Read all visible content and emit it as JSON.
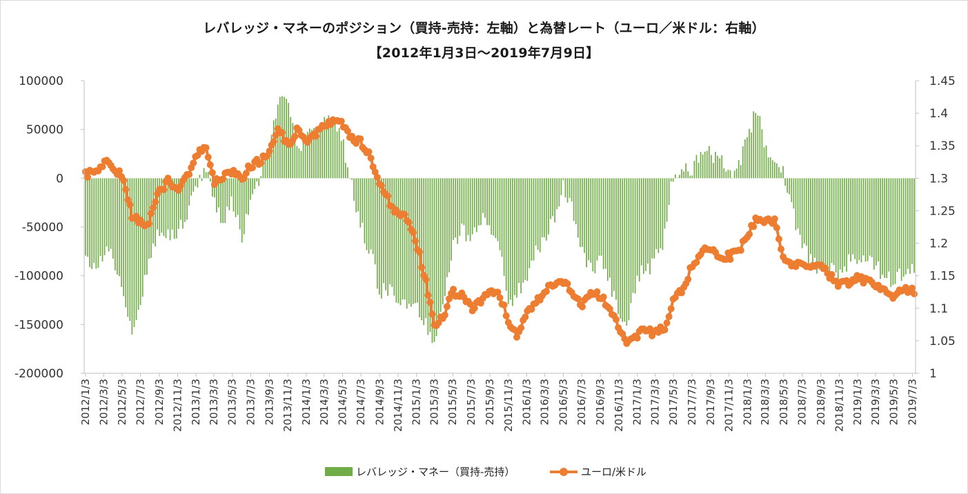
{
  "chart_data": {
    "type": "bar+line",
    "title": "レバレッジ・マネーのポジション（買持-売持：左軸）と為替レート（ユーロ／米ドル：右軸）",
    "subtitle": "【2012年1月3日～2019年7月9日】",
    "x_tick_labels": [
      "2012/1/3",
      "2012/3/3",
      "2012/5/3",
      "2012/7/3",
      "2012/9/3",
      "2012/11/3",
      "2013/1/3",
      "2013/3/3",
      "2013/5/3",
      "2013/7/3",
      "2013/9/3",
      "2013/11/3",
      "2014/1/3",
      "2014/3/3",
      "2014/5/3",
      "2014/7/3",
      "2014/9/3",
      "2014/11/3",
      "2015/1/3",
      "2015/3/3",
      "2015/5/3",
      "2015/7/3",
      "2015/9/3",
      "2015/11/3",
      "2016/1/3",
      "2016/3/3",
      "2016/5/3",
      "2016/7/3",
      "2016/9/3",
      "2016/11/3",
      "2017/1/3",
      "2017/3/3",
      "2017/5/3",
      "2017/7/3",
      "2017/9/3",
      "2017/11/3",
      "2018/1/3",
      "2018/3/3",
      "2018/5/3",
      "2018/7/3",
      "2018/9/3",
      "2018/11/3",
      "2019/1/3",
      "2019/3/3",
      "2019/5/3",
      "2019/7/3"
    ],
    "y_left": {
      "min": -200000,
      "max": 100000,
      "step": 50000,
      "tick_labels": [
        "100000",
        "50000",
        "0",
        "-50000",
        "-100000",
        "-150000",
        "-200000"
      ]
    },
    "y_right": {
      "min": 1.0,
      "max": 1.45,
      "step": 0.05,
      "tick_labels": [
        "1.45",
        "1.4",
        "1.35",
        "1.3",
        "1.25",
        "1.2",
        "1.15",
        "1.1",
        "1.05",
        "1"
      ]
    },
    "series": [
      {
        "name": "レバレッジ・マネー（買持-売持）",
        "kind": "bar",
        "color": "#70ad47",
        "anchors": [
          [
            "2012/1/3",
            -85000
          ],
          [
            "2012/2/3",
            -95000
          ],
          [
            "2012/3/3",
            -75000
          ],
          [
            "2012/4/3",
            -80000
          ],
          [
            "2012/5/3",
            -110000
          ],
          [
            "2012/6/3",
            -155000
          ],
          [
            "2012/7/3",
            -125000
          ],
          [
            "2012/8/3",
            -85000
          ],
          [
            "2012/9/3",
            -50000
          ],
          [
            "2012/10/3",
            -60000
          ],
          [
            "2012/11/3",
            -55000
          ],
          [
            "2012/12/3",
            -35000
          ],
          [
            "2013/1/3",
            -5000
          ],
          [
            "2013/2/3",
            10000
          ],
          [
            "2013/3/3",
            -20000
          ],
          [
            "2013/4/3",
            -45000
          ],
          [
            "2013/5/3",
            -25000
          ],
          [
            "2013/6/3",
            -60000
          ],
          [
            "2013/7/3",
            -30000
          ],
          [
            "2013/8/3",
            5000
          ],
          [
            "2013/9/3",
            30000
          ],
          [
            "2013/10/3",
            75000
          ],
          [
            "2013/11/3",
            85000
          ],
          [
            "2013/12/3",
            25000
          ],
          [
            "2014/1/3",
            40000
          ],
          [
            "2014/2/3",
            50000
          ],
          [
            "2014/3/3",
            65000
          ],
          [
            "2014/4/3",
            55000
          ],
          [
            "2014/5/3",
            40000
          ],
          [
            "2014/6/3",
            -10000
          ],
          [
            "2014/7/3",
            -50000
          ],
          [
            "2014/8/3",
            -75000
          ],
          [
            "2014/9/3",
            -115000
          ],
          [
            "2014/10/3",
            -115000
          ],
          [
            "2014/11/3",
            -130000
          ],
          [
            "2014/12/3",
            -125000
          ],
          [
            "2015/1/3",
            -130000
          ],
          [
            "2015/2/3",
            -150000
          ],
          [
            "2015/3/3",
            -165000
          ],
          [
            "2015/4/3",
            -120000
          ],
          [
            "2015/5/3",
            -70000
          ],
          [
            "2015/6/3",
            -50000
          ],
          [
            "2015/7/3",
            -70000
          ],
          [
            "2015/8/3",
            -40000
          ],
          [
            "2015/9/3",
            -50000
          ],
          [
            "2015/10/3",
            -60000
          ],
          [
            "2015/11/3",
            -135000
          ],
          [
            "2015/12/3",
            -115000
          ],
          [
            "2016/1/3",
            -110000
          ],
          [
            "2016/2/3",
            -75000
          ],
          [
            "2016/3/3",
            -60000
          ],
          [
            "2016/4/3",
            -40000
          ],
          [
            "2016/5/3",
            -10000
          ],
          [
            "2016/6/3",
            -30000
          ],
          [
            "2016/7/3",
            -70000
          ],
          [
            "2016/8/3",
            -95000
          ],
          [
            "2016/9/3",
            -85000
          ],
          [
            "2016/10/3",
            -110000
          ],
          [
            "2016/11/3",
            -140000
          ],
          [
            "2016/12/3",
            -150000
          ],
          [
            "2017/1/3",
            -100000
          ],
          [
            "2017/2/3",
            -95000
          ],
          [
            "2017/3/3",
            -85000
          ],
          [
            "2017/4/3",
            -60000
          ],
          [
            "2017/5/3",
            5000
          ],
          [
            "2017/6/3",
            5000
          ],
          [
            "2017/7/3",
            10000
          ],
          [
            "2017/8/3",
            25000
          ],
          [
            "2017/9/3",
            25000
          ],
          [
            "2017/10/3",
            20000
          ],
          [
            "2017/11/3",
            5000
          ],
          [
            "2017/12/3",
            10000
          ],
          [
            "2018/1/3",
            45000
          ],
          [
            "2018/2/3",
            70000
          ],
          [
            "2018/3/3",
            30000
          ],
          [
            "2018/4/3",
            25000
          ],
          [
            "2018/5/3",
            5000
          ],
          [
            "2018/6/3",
            -35000
          ],
          [
            "2018/7/3",
            -70000
          ],
          [
            "2018/8/3",
            -85000
          ],
          [
            "2018/9/3",
            -95000
          ],
          [
            "2018/10/3",
            -95000
          ],
          [
            "2018/11/3",
            -95000
          ],
          [
            "2018/12/3",
            -85000
          ],
          [
            "2019/1/3",
            -80000
          ],
          [
            "2019/2/3",
            -85000
          ],
          [
            "2019/3/3",
            -90000
          ],
          [
            "2019/4/3",
            -100000
          ],
          [
            "2019/5/3",
            -105000
          ],
          [
            "2019/6/3",
            -95000
          ],
          [
            "2019/7/9",
            -90000
          ]
        ]
      },
      {
        "name": "ユーロ/米ドル",
        "kind": "line",
        "color": "#ed7d31",
        "anchors": [
          [
            "2012/1/3",
            1.305
          ],
          [
            "2012/2/3",
            1.31
          ],
          [
            "2012/3/3",
            1.325
          ],
          [
            "2012/4/3",
            1.32
          ],
          [
            "2012/5/3",
            1.3
          ],
          [
            "2012/6/3",
            1.245
          ],
          [
            "2012/7/3",
            1.23
          ],
          [
            "2012/8/3",
            1.235
          ],
          [
            "2012/9/3",
            1.28
          ],
          [
            "2012/10/3",
            1.295
          ],
          [
            "2012/11/3",
            1.285
          ],
          [
            "2012/12/3",
            1.305
          ],
          [
            "2013/1/3",
            1.33
          ],
          [
            "2013/2/3",
            1.355
          ],
          [
            "2013/3/3",
            1.295
          ],
          [
            "2013/4/3",
            1.3
          ],
          [
            "2013/5/3",
            1.31
          ],
          [
            "2013/6/3",
            1.3
          ],
          [
            "2013/7/3",
            1.32
          ],
          [
            "2013/8/3",
            1.325
          ],
          [
            "2013/9/3",
            1.34
          ],
          [
            "2013/10/3",
            1.375
          ],
          [
            "2013/11/3",
            1.35
          ],
          [
            "2013/12/3",
            1.375
          ],
          [
            "2014/1/3",
            1.36
          ],
          [
            "2014/2/3",
            1.37
          ],
          [
            "2014/3/3",
            1.385
          ],
          [
            "2014/4/3",
            1.385
          ],
          [
            "2014/5/3",
            1.385
          ],
          [
            "2014/6/3",
            1.36
          ],
          [
            "2014/7/3",
            1.355
          ],
          [
            "2014/8/3",
            1.335
          ],
          [
            "2014/9/3",
            1.29
          ],
          [
            "2014/10/3",
            1.265
          ],
          [
            "2014/11/3",
            1.245
          ],
          [
            "2014/12/3",
            1.24
          ],
          [
            "2015/1/3",
            1.2
          ],
          [
            "2015/2/3",
            1.14
          ],
          [
            "2015/3/3",
            1.075
          ],
          [
            "2015/4/3",
            1.09
          ],
          [
            "2015/5/3",
            1.125
          ],
          [
            "2015/6/3",
            1.12
          ],
          [
            "2015/7/3",
            1.1
          ],
          [
            "2015/8/3",
            1.11
          ],
          [
            "2015/9/3",
            1.125
          ],
          [
            "2015/10/3",
            1.125
          ],
          [
            "2015/11/3",
            1.08
          ],
          [
            "2015/12/3",
            1.06
          ],
          [
            "2016/1/3",
            1.09
          ],
          [
            "2016/2/3",
            1.11
          ],
          [
            "2016/3/3",
            1.125
          ],
          [
            "2016/4/3",
            1.14
          ],
          [
            "2016/5/3",
            1.14
          ],
          [
            "2016/6/3",
            1.125
          ],
          [
            "2016/7/3",
            1.105
          ],
          [
            "2016/8/3",
            1.125
          ],
          [
            "2016/9/3",
            1.12
          ],
          [
            "2016/10/3",
            1.1
          ],
          [
            "2016/11/3",
            1.07
          ],
          [
            "2016/12/3",
            1.045
          ],
          [
            "2017/1/3",
            1.06
          ],
          [
            "2017/2/3",
            1.07
          ],
          [
            "2017/3/3",
            1.06
          ],
          [
            "2017/4/3",
            1.07
          ],
          [
            "2017/5/3",
            1.11
          ],
          [
            "2017/6/3",
            1.13
          ],
          [
            "2017/7/3",
            1.165
          ],
          [
            "2017/8/3",
            1.185
          ],
          [
            "2017/9/3",
            1.195
          ],
          [
            "2017/10/3",
            1.18
          ],
          [
            "2017/11/3",
            1.18
          ],
          [
            "2017/12/3",
            1.185
          ],
          [
            "2018/1/3",
            1.215
          ],
          [
            "2018/2/3",
            1.24
          ],
          [
            "2018/3/3",
            1.235
          ],
          [
            "2018/4/3",
            1.235
          ],
          [
            "2018/5/3",
            1.175
          ],
          [
            "2018/6/3",
            1.165
          ],
          [
            "2018/7/3",
            1.17
          ],
          [
            "2018/8/3",
            1.16
          ],
          [
            "2018/9/3",
            1.165
          ],
          [
            "2018/10/3",
            1.15
          ],
          [
            "2018/11/3",
            1.135
          ],
          [
            "2018/12/3",
            1.14
          ],
          [
            "2019/1/3",
            1.145
          ],
          [
            "2019/2/3",
            1.14
          ],
          [
            "2019/3/3",
            1.135
          ],
          [
            "2019/4/3",
            1.125
          ],
          [
            "2019/5/3",
            1.12
          ],
          [
            "2019/6/3",
            1.13
          ],
          [
            "2019/7/9",
            1.125
          ]
        ]
      }
    ]
  }
}
